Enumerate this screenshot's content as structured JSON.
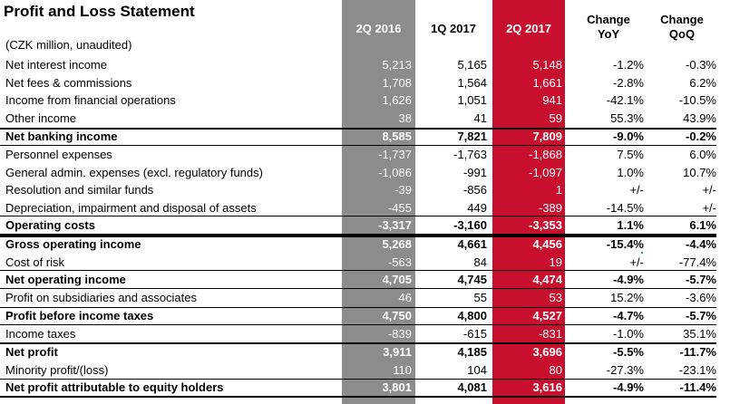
{
  "title": "Profit and Loss Statement",
  "subtitle": "(CZK million, unaudited)",
  "headers": {
    "c1": "2Q 2016",
    "c2": "1Q 2017",
    "c3": "2Q 2017",
    "c4a": "Change",
    "c4b": "YoY",
    "c5a": "Change",
    "c5b": "QoQ"
  },
  "colors": {
    "gray_column": "#8c8c8c",
    "red_column": "#c8102e",
    "header_text_light": "#ffffff"
  },
  "rows": [
    {
      "label": "Net interest income",
      "v1": "5,213",
      "v2": "5,165",
      "v3": "5,148",
      "yoy": "-1.2%",
      "qoq": "-0.3%"
    },
    {
      "label": "Net fees & commissions",
      "v1": "1,708",
      "v2": "1,564",
      "v3": "1,661",
      "yoy": "-2.8%",
      "qoq": "6.2%"
    },
    {
      "label": "Income from financial operations",
      "v1": "1,626",
      "v2": "1,051",
      "v3": "941",
      "yoy": "-42.1%",
      "qoq": "-10.5%"
    },
    {
      "label": "Other income",
      "v1": "38",
      "v2": "41",
      "v3": "59",
      "yoy": "55.3%",
      "qoq": "43.9%"
    },
    {
      "label": "Net banking income",
      "v1": "8,585",
      "v2": "7,821",
      "v3": "7,809",
      "yoy": "-9.0%",
      "qoq": "-0.2%"
    },
    {
      "label": "Personnel expenses",
      "v1": "-1,737",
      "v2": "-1,763",
      "v3": "-1,868",
      "yoy": "7.5%",
      "qoq": "6.0%"
    },
    {
      "label": "General admin. expenses (excl. regulatory funds)",
      "v1": "-1,086",
      "v2": "-991",
      "v3": "-1,097",
      "yoy": "1.0%",
      "qoq": "10.7%"
    },
    {
      "label": "Resolution and similar funds",
      "v1": "-39",
      "v2": "-856",
      "v3": "1",
      "yoy": "+/-",
      "qoq": "+/-"
    },
    {
      "label": "Depreciation, impairment and disposal of assets",
      "v1": "-455",
      "v2": "449",
      "v3": "-389",
      "yoy": "-14.5%",
      "qoq": "+/-"
    },
    {
      "label": "Operating costs",
      "v1": "-3,317",
      "v2": "-3,160",
      "v3": "-3,353",
      "yoy": "1.1%",
      "qoq": "6.1%"
    },
    {
      "label": "Gross operating income",
      "v1": "5,268",
      "v2": "4,661",
      "v3": "4,456",
      "yoy": "-15.4%",
      "qoq": "-4.4%"
    },
    {
      "label": "Cost of risk",
      "v1": "-563",
      "v2": "84",
      "v3": "19",
      "yoy": "+/-",
      "qoq": "-77.4%"
    },
    {
      "label": "Net operating income",
      "v1": "4,705",
      "v2": "4,745",
      "v3": "4,474",
      "yoy": "-4.9%",
      "qoq": "-5.7%"
    },
    {
      "label": "Profit on subsidiaries and associates",
      "v1": "46",
      "v2": "55",
      "v3": "53",
      "yoy": "15.2%",
      "qoq": "-3.6%"
    },
    {
      "label": "Profit before income taxes",
      "v1": "4,750",
      "v2": "4,800",
      "v3": "4,527",
      "yoy": "-4.7%",
      "qoq": "-5.7%"
    },
    {
      "label": "Income taxes",
      "v1": "-839",
      "v2": "-615",
      "v3": "-831",
      "yoy": "-1.0%",
      "qoq": "35.1%"
    },
    {
      "label": "Net profit",
      "v1": "3,911",
      "v2": "4,185",
      "v3": "3,696",
      "yoy": "-5.5%",
      "qoq": "-11.7%"
    },
    {
      "label": "Minority profit/(loss)",
      "v1": "110",
      "v2": "104",
      "v3": "80",
      "yoy": "-27.3%",
      "qoq": "-23.1%"
    },
    {
      "label": "Net profit attributable to equity holders",
      "v1": "3,801",
      "v2": "4,081",
      "v3": "3,616",
      "yoy": "-4.9%",
      "qoq": "-11.4%"
    }
  ]
}
